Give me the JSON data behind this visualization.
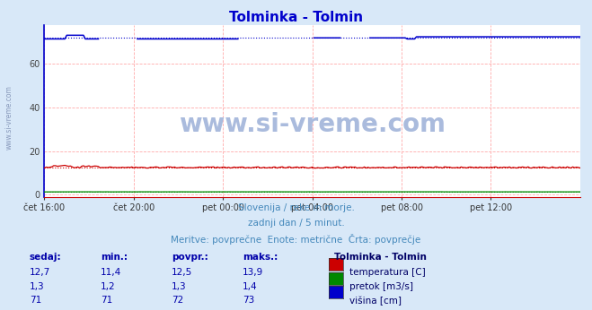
{
  "title": "Tolminka - Tolmin",
  "title_color": "#0000cc",
  "bg_color": "#d8e8f8",
  "plot_bg_color": "#ffffff",
  "grid_color": "#ffaaaa",
  "grid_vcolor": "#ddaaaa",
  "xlabel_ticks": [
    "čet 16:00",
    "čet 20:00",
    "pet 00:00",
    "pet 04:00",
    "pet 08:00",
    "pet 12:00"
  ],
  "yticks": [
    0,
    20,
    40,
    60
  ],
  "ylim": [
    -1,
    78
  ],
  "xlim": [
    0,
    288
  ],
  "tick_positions": [
    0,
    48,
    96,
    144,
    192,
    240
  ],
  "subtitle1": "Slovenija / reke in morje.",
  "subtitle2": "zadnji dan / 5 minut.",
  "subtitle3": "Meritve: povprečne  Enote: metrične  Črta: povprečje",
  "subtitle_color": "#4488bb",
  "watermark": "www.si-vreme.com",
  "watermark_color": "#aabbdd",
  "side_label": "www.si-vreme.com",
  "legend_title": "Tolminka - Tolmin",
  "legend_title_color": "#000066",
  "legend_items": [
    {
      "label": "temperatura [C]",
      "color": "#cc0000"
    },
    {
      "label": "pretok [m3/s]",
      "color": "#008800"
    },
    {
      "label": "višina [cm]",
      "color": "#0000cc"
    }
  ],
  "table_headers": [
    "sedaj:",
    "min.:",
    "povpr.:",
    "maks.:"
  ],
  "table_data": [
    [
      "12,7",
      "11,4",
      "12,5",
      "13,9"
    ],
    [
      "1,3",
      "1,2",
      "1,3",
      "1,4"
    ],
    [
      "71",
      "71",
      "72",
      "73"
    ]
  ],
  "table_color": "#0000aa",
  "temp_avg": 12.5,
  "temp_min": 11.4,
  "temp_max": 13.9,
  "flow_avg": 1.3,
  "flow_min": 1.2,
  "flow_max": 1.4,
  "height_avg": 72.0,
  "height_min": 71.0,
  "height_max": 73.0,
  "n_points": 289
}
